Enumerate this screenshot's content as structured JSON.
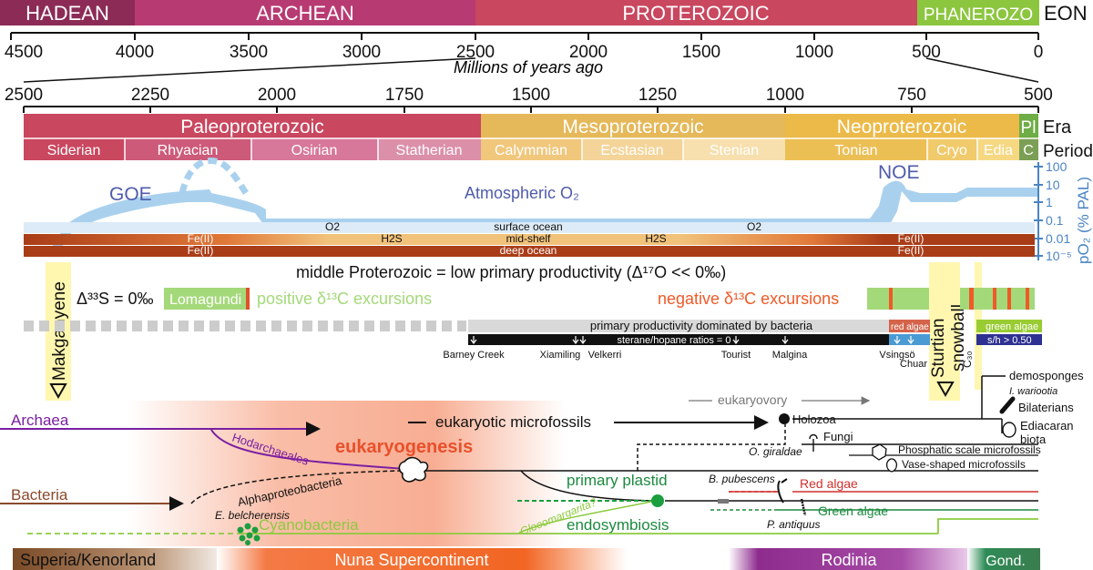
{
  "eon": {
    "label": "EON",
    "segments": [
      {
        "name": "HADEAN",
        "start": 4500,
        "end": 4000,
        "color": "#8c2b56"
      },
      {
        "name": "ARCHEAN",
        "start": 4000,
        "end": 2500,
        "color": "#b83a72"
      },
      {
        "name": "PROTEROZOIC",
        "start": 2500,
        "end": 541,
        "color": "#c9475f"
      },
      {
        "name": "PHANEROZO",
        "start": 541,
        "end": 0,
        "color": "#8cc63f"
      }
    ],
    "ticks": [
      "4500",
      "4000",
      "3500",
      "3000",
      "2500",
      "2000",
      "1500",
      "1000",
      "500",
      "0"
    ],
    "axis_label": "Millions of years ago"
  },
  "zoom": {
    "ticks": [
      "2500",
      "2250",
      "2000",
      "1750",
      "1500",
      "1250",
      "1000",
      "750",
      "500"
    ],
    "era_label": "Era",
    "period_label": "Period",
    "eras": [
      {
        "name": "Paleoproterozoic",
        "start": 2500,
        "end": 1600,
        "color": "#c9475f"
      },
      {
        "name": "Mesoproterozoic",
        "start": 1600,
        "end": 1000,
        "color": "#e5b85a"
      },
      {
        "name": "Neoproterozoic",
        "start": 1000,
        "end": 541,
        "color": "#ecba49"
      },
      {
        "name": "Pl",
        "start": 541,
        "end": 500,
        "color": "#6fad46"
      }
    ],
    "periods": [
      {
        "name": "Siderian",
        "start": 2500,
        "end": 2300,
        "color": "#c9475f"
      },
      {
        "name": "Rhyacian",
        "start": 2300,
        "end": 2050,
        "color": "#cd5a79"
      },
      {
        "name": "Osirian",
        "start": 2050,
        "end": 1800,
        "color": "#d7779a"
      },
      {
        "name": "Statherian",
        "start": 1800,
        "end": 1600,
        "color": "#dc8fa9"
      },
      {
        "name": "Calymmian",
        "start": 1600,
        "end": 1400,
        "color": "#f1c77c"
      },
      {
        "name": "Ecstasian",
        "start": 1400,
        "end": 1200,
        "color": "#f4d499"
      },
      {
        "name": "Stenian",
        "start": 1200,
        "end": 1000,
        "color": "#f7dfae"
      },
      {
        "name": "Tonian",
        "start": 1000,
        "end": 720,
        "color": "#ecbf55"
      },
      {
        "name": "Cryo",
        "start": 720,
        "end": 635,
        "color": "#f1ca6b"
      },
      {
        "name": "Edia",
        "start": 635,
        "end": 541,
        "color": "#f6d882"
      },
      {
        "name": "C",
        "start": 541,
        "end": 500,
        "color": "#7a9f55"
      }
    ]
  },
  "oxygen": {
    "goe": "GOE",
    "noe": "NOE",
    "atmos": "Atmospheric O₂",
    "axis_label": "pO₂ (% PAL)",
    "axis_ticks": [
      "100",
      "10",
      "1",
      "0.1",
      "0.01",
      "10⁻⁵"
    ]
  },
  "ocean": {
    "surface": "surface ocean",
    "mid": "mid-shelf",
    "deep": "deep ocean",
    "o2_left": "O2",
    "o2_right": "O2",
    "h2s_left": "H2S",
    "h2s_right": "H2S",
    "fe_left_1": "Fe(II)",
    "fe_left_2": "Fe(II)",
    "fe_right_1": "Fe(II)",
    "fe_right_2": "Fe(II)"
  },
  "productivity": {
    "middle": "middle Proterozoic = low primary productivity (Δ¹⁷O << 0‰)",
    "d33s": "Δ³³S = 0‰",
    "lomagundi": "Lomagundi",
    "positive": "positive δ¹³C excursions",
    "negative": "negative δ¹³C excursions",
    "bacteria": "primary productivity dominated by bacteria",
    "sterane": "sterane/hopane ratios = 0",
    "red_algae": "red algae",
    "green_algae": "green algae",
    "sh": "s/h > 0.50"
  },
  "localities": [
    "Barney Creek",
    "Xiamiling",
    "Velkerri",
    "Tourist",
    "Malgina",
    "Vsingsö",
    "Chuar"
  ],
  "events": {
    "makganyene": "Makganyene",
    "sturtian": "Sturtian snowball",
    "c30": "C₃₀"
  },
  "tree": {
    "archaea": "Archaea",
    "bacteria": "Bacteria",
    "hodarchaeales": "Hodarchaeales",
    "alphaproteobacteria": "Alphaproteobacteria",
    "eukaryogenesis": "eukaryogenesis",
    "eukaryotic_microfossils": "eukaryotic microfossils",
    "eukaryovory": "eukaryovory",
    "holozoa": "Holozoa",
    "fungi": "Fungi",
    "o_giraldae": "O. giraldae",
    "demosponges": "demosponges",
    "i_wariootia": "I. wariootia",
    "bilaterians": "Bilaterians",
    "ediacaran": "Ediacaran biota",
    "phosphatic": "Phosphatic scale microfossils",
    "vase": "Vase-shaped microfossils",
    "primary_plastid": "primary plastid",
    "endosymbiosis": "endosymbiosis",
    "b_pubescens": "B. pubescens",
    "red_algae": "Red algae",
    "green_algae": "Green algae",
    "p_antiquus": "P. antiquus",
    "gloeomargarita": "Gloeomargarita?",
    "cyanobacteria": "Cyanobacteria",
    "e_belcherensis": "E. belcherensis"
  },
  "continents": [
    "Superia/Kenorland",
    "Nuna Supercontinent",
    "Rodinia",
    "Gond."
  ]
}
